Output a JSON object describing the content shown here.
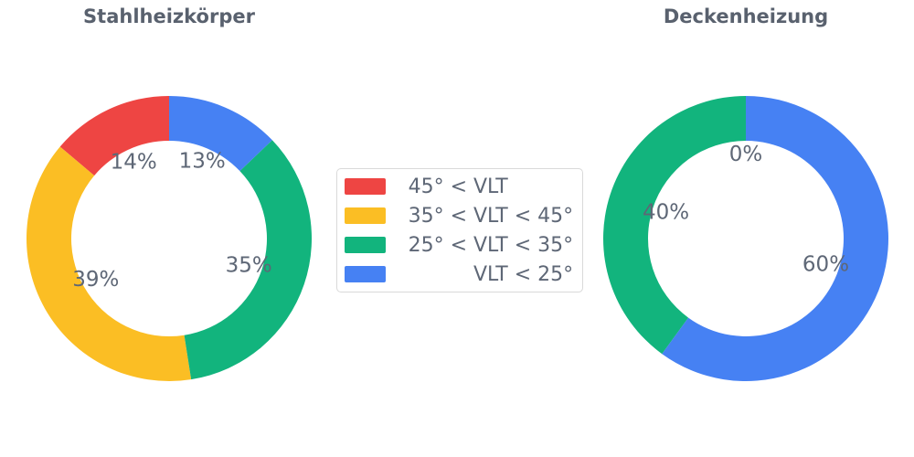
{
  "page": {
    "background": "#ffffff"
  },
  "palette": {
    "red": "#EE4543",
    "yellow": "#FBBE24",
    "green": "#12B47D",
    "blue": "#4681F3"
  },
  "text_colors": {
    "title": "#59616E",
    "label": "#5E6776"
  },
  "chart_data": [
    {
      "type": "pie",
      "subtype": "donut",
      "title": "Stahlheizkörper",
      "hole": 0.69,
      "direction": "counterclockwise",
      "rotation_deg": 0,
      "categories": [
        "45° < VLT",
        "35° < VLT < 45°",
        "25° < VLT < 35°",
        "VLT < 25°"
      ],
      "values": [
        14,
        39,
        35,
        13
      ],
      "labels": [
        "14%",
        "39%",
        "35%",
        "13%"
      ],
      "colors": [
        "#EE4543",
        "#FBBE24",
        "#12B47D",
        "#4681F3"
      ],
      "label_position": "inside"
    },
    {
      "type": "pie",
      "subtype": "donut",
      "title": "Deckenheizung",
      "hole": 0.69,
      "direction": "counterclockwise",
      "rotation_deg": 0,
      "categories": [
        "45° < VLT",
        "35° < VLT < 45°",
        "25° < VLT < 35°",
        "VLT < 25°"
      ],
      "values": [
        0,
        0,
        40,
        60
      ],
      "labels": [
        "0%",
        "0%",
        "40%",
        "60%"
      ],
      "colors": [
        "#EE4543",
        "#FBBE24",
        "#12B47D",
        "#4681F3"
      ],
      "label_position": "inside"
    }
  ],
  "legend": {
    "position": "center",
    "items": [
      {
        "color": "#EE4543",
        "label": "45° < VLT",
        "prefix": "45° <",
        "mid": "VLT",
        "suffix": ""
      },
      {
        "color": "#FBBE24",
        "label": "35° < VLT < 45°",
        "prefix": "35° <",
        "mid": "VLT",
        "suffix": "< 45°"
      },
      {
        "color": "#12B47D",
        "label": "25° < VLT < 35°",
        "prefix": "25° <",
        "mid": "VLT",
        "suffix": "< 35°"
      },
      {
        "color": "#4681F3",
        "label": "VLT < 25°",
        "prefix": "",
        "mid": "VLT",
        "suffix": "< 25°"
      }
    ]
  }
}
